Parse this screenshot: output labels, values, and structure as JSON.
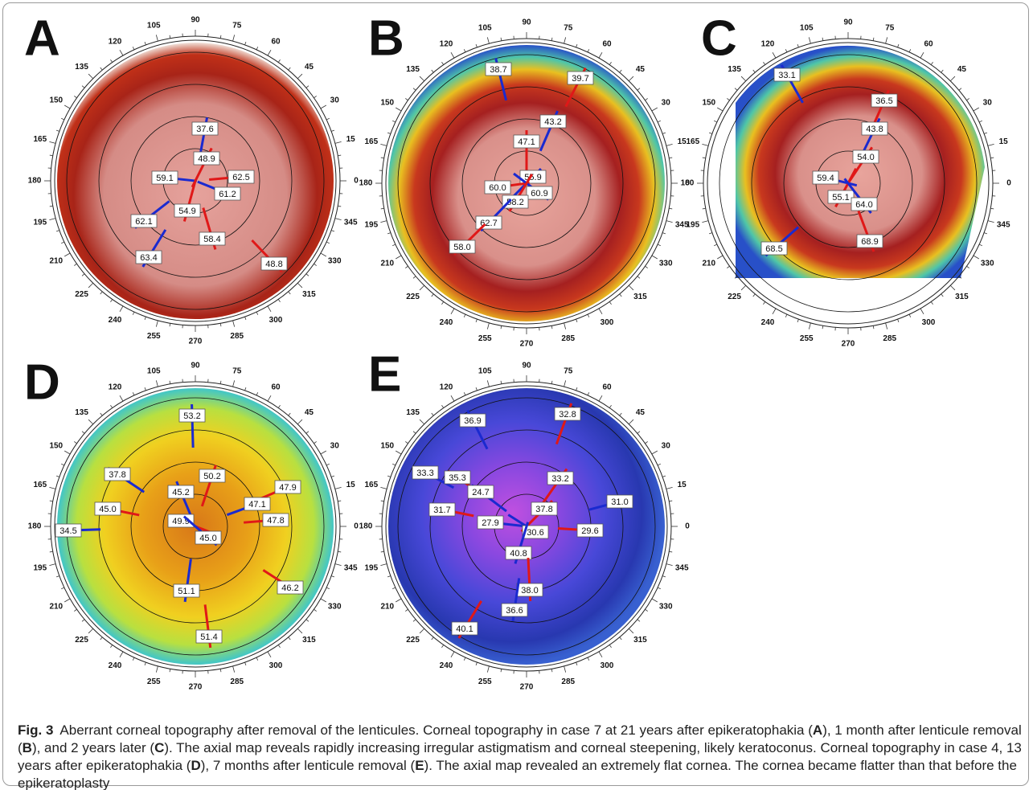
{
  "figure": {
    "angles": [
      "0",
      "15",
      "30",
      "45",
      "60",
      "75",
      "90",
      "105",
      "120",
      "135",
      "150",
      "165",
      "180",
      "195",
      "210",
      "225",
      "240",
      "255",
      "270",
      "285",
      "300",
      "315",
      "330",
      "345"
    ],
    "panels": [
      {
        "label": "A",
        "values": [
          "37.6",
          "48.9",
          "59.1",
          "62.5",
          "61.2",
          "54.9",
          "62.1",
          "58.4",
          "63.4",
          "48.8"
        ]
      },
      {
        "label": "B",
        "values": [
          "38.7",
          "39.7",
          "43.2",
          "47.1",
          "55.9",
          "60.0",
          "60.9",
          "58.2",
          "62.7",
          "58.0"
        ]
      },
      {
        "label": "C",
        "values": [
          "33.1",
          "36.5",
          "43.8",
          "54.0",
          "59.4",
          "55.1",
          "64.0",
          "68.9",
          "68.5"
        ]
      },
      {
        "label": "D",
        "values": [
          "53.2",
          "50.2",
          "37.8",
          "47.9",
          "45.2",
          "45.0",
          "47.1",
          "47.8",
          "34.5",
          "49.9",
          "45.0",
          "46.2",
          "51.1",
          "51.4"
        ]
      },
      {
        "label": "E",
        "values": [
          "36.9",
          "32.8",
          "33.3",
          "35.3",
          "24.7",
          "33.2",
          "31.0",
          "31.7",
          "27.9",
          "37.8",
          "30.6",
          "29.6",
          "40.8",
          "38.0",
          "36.6",
          "40.1"
        ]
      }
    ]
  },
  "caption": {
    "label": "Fig. 3",
    "parts": [
      "Aberrant corneal topography after removal of the lenticules. Corneal topography in case 7 at 21 years after epikeratophakia (",
      "A",
      "), 1 month after lenticule removal (",
      "B",
      "), and 2 years later (",
      "C",
      "). The axial map reveals rapidly increasing irregular astigmatism and corneal steepening, likely keratoconus. Corneal topography in case 4, 13 years after epikeratophakia (",
      "D",
      "), 7 months after lenticule removal (",
      "E",
      "). The axial map revealed an extremely flat cornea. The cornea became flatter than that before the epikeratoplasty"
    ]
  }
}
